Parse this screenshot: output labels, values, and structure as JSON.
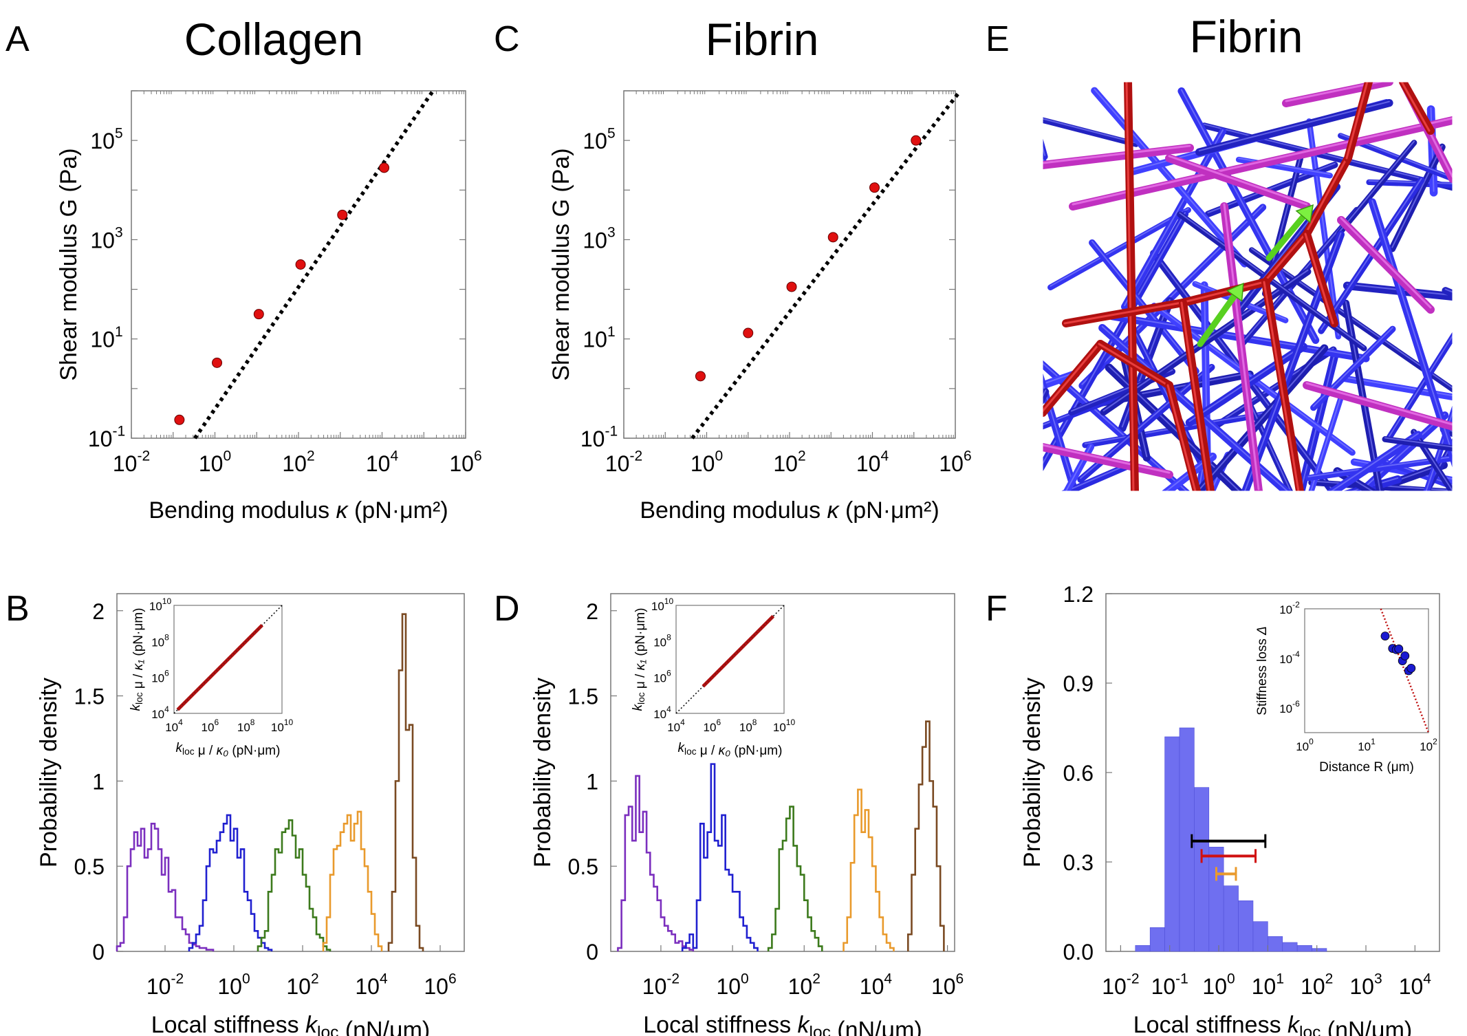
{
  "figure": {
    "panel_labels": [
      "A",
      "C",
      "E",
      "B",
      "D",
      "F"
    ],
    "titles": {
      "A": "Collagen",
      "C": "Fibrin",
      "E": "Fibrin"
    },
    "network_render_description_hidden": false
  },
  "chart_data": [
    {
      "id": "A",
      "type": "scatter",
      "title": "Collagen",
      "xlabel": "Bending modulus κ (pN·μm²)",
      "ylabel": "Shear modulus G (Pa)",
      "xscale": "log",
      "yscale": "log",
      "xlim_log10": [
        -2,
        6
      ],
      "ylim_log10": [
        -1,
        6
      ],
      "xticks_log10": [
        -2,
        0,
        2,
        4,
        6
      ],
      "yticks_log10": [
        -1,
        1,
        3,
        5
      ],
      "points_log10": [
        [
          -0.85,
          -0.63
        ],
        [
          0.05,
          0.52
        ],
        [
          1.05,
          1.5
        ],
        [
          2.05,
          2.5
        ],
        [
          3.05,
          3.5
        ],
        [
          4.05,
          4.45
        ]
      ],
      "fit_line_log10": [
        [
          -0.48,
          -1.0
        ],
        [
          5.22,
          6.0
        ]
      ],
      "fit_style": "black dotted"
    },
    {
      "id": "C",
      "type": "scatter",
      "title": "Fibrin",
      "xlabel": "Bending modulus κ (pN·μm²)",
      "ylabel": "Shear modulus G (Pa)",
      "xscale": "log",
      "yscale": "log",
      "xlim_log10": [
        -2,
        6
      ],
      "ylim_log10": [
        -1,
        6
      ],
      "xticks_log10": [
        -2,
        0,
        2,
        4,
        6
      ],
      "yticks_log10": [
        -1,
        1,
        3,
        5
      ],
      "points_log10": [
        [
          -0.15,
          0.25
        ],
        [
          1.0,
          1.12
        ],
        [
          2.05,
          2.05
        ],
        [
          3.05,
          3.05
        ],
        [
          4.05,
          4.05
        ],
        [
          5.05,
          5.0
        ]
      ],
      "fit_line_log10": [
        [
          -0.35,
          -1.0
        ],
        [
          6.12,
          6.0
        ]
      ],
      "fit_style": "black dotted"
    },
    {
      "id": "B",
      "type": "histogram",
      "xlabel": "Local stiffness k_loc (nN/μm)",
      "ylabel": "Probability density",
      "xscale": "log",
      "xlim_log10": [
        -3.4,
        6.7
      ],
      "ylim": [
        0,
        2.1
      ],
      "xticks_log10": [
        -2,
        0,
        2,
        4,
        6
      ],
      "yticks": [
        0,
        0.5,
        1,
        1.5,
        2
      ],
      "series": [
        {
          "name": "purple",
          "color": "#7b2fbe",
          "x0_log10": -3.4,
          "bin_log10": 0.1,
          "values": [
            0.03,
            0.05,
            0.2,
            0.5,
            0.6,
            0.7,
            0.62,
            0.72,
            0.55,
            0.6,
            0.75,
            0.72,
            0.6,
            0.45,
            0.55,
            0.35,
            0.36,
            0.2,
            0.2,
            0.13,
            0.1,
            0.05,
            0.04,
            0.03,
            0.02,
            0.02,
            0.01,
            0.01
          ]
        },
        {
          "name": "blue",
          "color": "#2020d0",
          "x0_log10": -1.3,
          "bin_log10": 0.1,
          "values": [
            0.02,
            0.05,
            0.1,
            0.15,
            0.3,
            0.5,
            0.6,
            0.58,
            0.65,
            0.7,
            0.75,
            0.8,
            0.65,
            0.72,
            0.55,
            0.6,
            0.35,
            0.3,
            0.22,
            0.12,
            0.08,
            0.05,
            0.02,
            0.01
          ]
        },
        {
          "name": "green",
          "color": "#3c7a1c",
          "x0_log10": 0.7,
          "bin_log10": 0.1,
          "values": [
            0.03,
            0.08,
            0.12,
            0.35,
            0.45,
            0.6,
            0.58,
            0.7,
            0.72,
            0.77,
            0.68,
            0.55,
            0.6,
            0.45,
            0.38,
            0.25,
            0.2,
            0.1,
            0.08,
            0.03,
            0.01
          ]
        },
        {
          "name": "orange",
          "color": "#e99a2c",
          "x0_log10": 2.6,
          "bin_log10": 0.1,
          "values": [
            0.05,
            0.2,
            0.45,
            0.6,
            0.62,
            0.7,
            0.75,
            0.8,
            0.65,
            0.75,
            0.82,
            0.6,
            0.5,
            0.35,
            0.22,
            0.1,
            0.03
          ]
        },
        {
          "name": "brown",
          "color": "#7a4a22",
          "x0_log10": 4.5,
          "bin_log10": 0.1,
          "values": [
            0.05,
            0.35,
            1.0,
            1.65,
            1.98,
            1.3,
            1.33,
            0.55,
            0.15,
            0.02
          ]
        }
      ],
      "inset": {
        "xlabel": "k_loc μ / κ₀ (pN·μm)",
        "ylabel": "k_loc μ / κ₁ (pN·μm)",
        "xlim_log10": [
          4,
          10
        ],
        "ylim_log10": [
          4,
          10
        ],
        "xticks_log10": [
          4,
          6,
          8,
          10
        ],
        "yticks_log10": [
          4,
          6,
          8,
          10
        ],
        "points_span_log10": [
          4.2,
          8.9
        ]
      }
    },
    {
      "id": "D",
      "type": "histogram",
      "xlabel": "Local stiffness k_loc (nN/μm)",
      "ylabel": "Probability density",
      "xscale": "log",
      "xlim_log10": [
        -3.4,
        6.2
      ],
      "ylim": [
        0,
        2.1
      ],
      "xticks_log10": [
        -2,
        0,
        2,
        4,
        6
      ],
      "yticks": [
        0,
        0.5,
        1,
        1.5,
        2
      ],
      "series": [
        {
          "name": "purple",
          "color": "#7b2fbe",
          "x0_log10": -3.2,
          "bin_log10": 0.1,
          "values": [
            0.02,
            0.3,
            0.8,
            0.85,
            0.65,
            1.03,
            0.7,
            0.82,
            0.58,
            0.45,
            0.38,
            0.3,
            0.2,
            0.15,
            0.12,
            0.1,
            0.05,
            0.06,
            0.03,
            0.02,
            0.01
          ]
        },
        {
          "name": "blue",
          "color": "#2020d0",
          "x0_log10": -1.4,
          "bin_log10": 0.1,
          "values": [
            0.02,
            0.05,
            0.1,
            0.02,
            0.3,
            0.75,
            0.55,
            0.7,
            1.1,
            0.65,
            0.62,
            0.8,
            0.48,
            0.45,
            0.35,
            0.35,
            0.2,
            0.15,
            0.08,
            0.05,
            0.02
          ]
        },
        {
          "name": "green",
          "color": "#3c7a1c",
          "x0_log10": 1.0,
          "bin_log10": 0.1,
          "values": [
            0.02,
            0.1,
            0.25,
            0.6,
            0.65,
            0.78,
            0.85,
            0.62,
            0.5,
            0.45,
            0.3,
            0.2,
            0.12,
            0.08,
            0.03
          ]
        },
        {
          "name": "orange",
          "color": "#e99a2c",
          "x0_log10": 3.1,
          "bin_log10": 0.1,
          "values": [
            0.05,
            0.2,
            0.52,
            0.8,
            0.95,
            0.7,
            0.83,
            0.67,
            0.5,
            0.35,
            0.2,
            0.1,
            0.05,
            0.02
          ]
        },
        {
          "name": "brown",
          "color": "#7a4a22",
          "x0_log10": 4.9,
          "bin_log10": 0.1,
          "values": [
            0.1,
            0.45,
            0.72,
            0.98,
            1.2,
            1.35,
            1.0,
            0.85,
            0.5,
            0.15
          ]
        }
      ],
      "inset": {
        "xlabel": "k_loc μ / κ₀ (pN·μm)",
        "ylabel": "k_loc μ / κ₁ (pN·μm)",
        "xlim_log10": [
          4,
          10
        ],
        "ylim_log10": [
          4,
          10
        ],
        "xticks_log10": [
          4,
          6,
          8,
          10
        ],
        "yticks_log10": [
          4,
          6,
          8,
          10
        ],
        "points_span_log10": [
          5.5,
          9.4
        ]
      }
    },
    {
      "id": "F",
      "type": "histogram",
      "xlabel": "Local stiffness k_loc (nN/μm)",
      "ylabel": "Probability density",
      "xscale": "log",
      "xlim_log10": [
        -2.3,
        4.5
      ],
      "ylim": [
        0,
        1.2
      ],
      "xticks_log10": [
        -2,
        -1,
        0,
        1,
        2,
        3,
        4
      ],
      "yticks": [
        0.0,
        0.3,
        0.6,
        0.9,
        1.2
      ],
      "yticklabels": [
        "0.0",
        "0.3",
        "0.6",
        "0.9",
        "1.2"
      ],
      "bar_color": "#6f6ff0",
      "bin_log10": 0.3,
      "x0_log10": -1.7,
      "values": [
        0.02,
        0.08,
        0.72,
        0.75,
        0.55,
        0.35,
        0.22,
        0.17,
        0.1,
        0.05,
        0.03,
        0.02,
        0.01
      ],
      "error_bars": [
        {
          "color": "#000000",
          "y": 0.37,
          "x_log10": [
            -0.55,
            0.95
          ]
        },
        {
          "color": "#d01010",
          "y": 0.32,
          "x_log10": [
            -0.35,
            0.75
          ]
        },
        {
          "color": "#e99a2c",
          "y": 0.26,
          "x_log10": [
            -0.05,
            0.35
          ]
        }
      ],
      "inset": {
        "xlabel": "Distance R (μm)",
        "ylabel": "Stiffness loss Δ",
        "xlim_log10": [
          0,
          2
        ],
        "ylim_log10": [
          -7,
          -2
        ],
        "xticks_log10": [
          0,
          1,
          2
        ],
        "yticks_log10": [
          -6,
          -4,
          -2
        ],
        "points_log10": [
          [
            1.3,
            -3.1
          ],
          [
            1.42,
            -3.6
          ],
          [
            1.48,
            -3.65
          ],
          [
            1.52,
            -3.62
          ],
          [
            1.58,
            -4.1
          ],
          [
            1.62,
            -3.9
          ],
          [
            1.68,
            -4.5
          ],
          [
            1.72,
            -4.4
          ]
        ],
        "fit_line_log10": [
          [
            1.23,
            -2.0
          ],
          [
            2.0,
            -7.0
          ]
        ]
      }
    }
  ]
}
